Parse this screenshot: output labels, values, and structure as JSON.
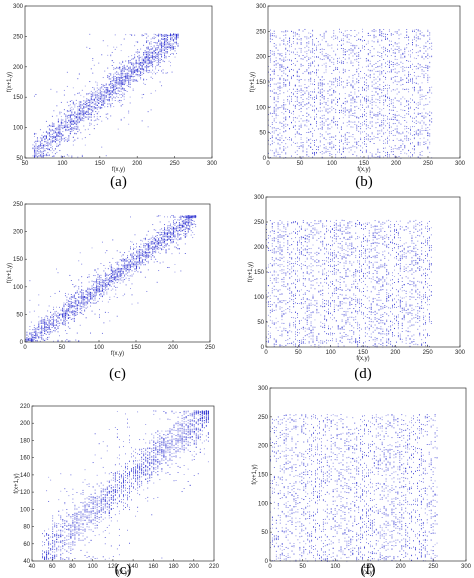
{
  "chart_data": [
    {
      "type": "scatter",
      "panel_label": "(a)",
      "xlabel": "f(x,y)",
      "ylabel": "f(x+1,y)",
      "xlim": [
        50,
        300
      ],
      "ylim": [
        50,
        300
      ],
      "xticks": [
        "50",
        "100",
        "150",
        "200",
        "250",
        "300"
      ],
      "yticks": [
        "50",
        "100",
        "150",
        "200",
        "250",
        "300"
      ],
      "pattern": "correlated",
      "data_range": [
        60,
        255
      ],
      "spread": 30,
      "points_color": "#2b2fd0",
      "grid": false,
      "legend": "none"
    },
    {
      "type": "scatter",
      "panel_label": "(b)",
      "xlabel": "f(x,y)",
      "ylabel": "f(x+1,y)",
      "xlim": [
        0,
        300
      ],
      "ylim": [
        0,
        300
      ],
      "xticks": [
        "0",
        "50",
        "100",
        "150",
        "200",
        "250",
        "300"
      ],
      "yticks": [
        "0",
        "50",
        "100",
        "150",
        "200",
        "250",
        "300"
      ],
      "pattern": "uniform",
      "data_range": [
        0,
        255
      ],
      "points_color": "#2b2fd0",
      "grid": false,
      "legend": "none"
    },
    {
      "type": "scatter",
      "panel_label": "(c)",
      "xlabel": "f(x,y)",
      "ylabel": "f(x+1,y)",
      "xlim": [
        0,
        250
      ],
      "ylim": [
        0,
        250
      ],
      "xticks": [
        "0",
        "50",
        "100",
        "150",
        "200",
        "250"
      ],
      "yticks": [
        "0",
        "50",
        "100",
        "150",
        "200",
        "250"
      ],
      "pattern": "correlated",
      "data_range": [
        0,
        230
      ],
      "spread": 25,
      "points_color": "#2b2fd0",
      "grid": false,
      "legend": "none"
    },
    {
      "type": "scatter",
      "panel_label": "(d)",
      "xlabel": "f(x,y)",
      "ylabel": "f(x+1,y)",
      "xlim": [
        0,
        300
      ],
      "ylim": [
        0,
        300
      ],
      "xticks": [
        "0",
        "50",
        "100",
        "150",
        "200",
        "250",
        "300"
      ],
      "yticks": [
        "0",
        "50",
        "100",
        "150",
        "200",
        "250",
        "300"
      ],
      "pattern": "uniform",
      "data_range": [
        0,
        255
      ],
      "points_color": "#2b2fd0",
      "grid": false,
      "legend": "none"
    },
    {
      "type": "scatter",
      "panel_label": "(c)",
      "xlabel": "f(x,y)",
      "ylabel": "f(x+1,y)",
      "xlim": [
        40,
        220
      ],
      "ylim": [
        40,
        220
      ],
      "xticks": [
        "40",
        "60",
        "80",
        "100",
        "120",
        "140",
        "160",
        "180",
        "200",
        "220"
      ],
      "yticks": [
        "40",
        "60",
        "80",
        "100",
        "120",
        "140",
        "160",
        "180",
        "200",
        "220"
      ],
      "pattern": "correlated",
      "data_range": [
        50,
        215
      ],
      "spread": 28,
      "points_color": "#2b2fd0",
      "grid": false,
      "legend": "none"
    },
    {
      "type": "scatter",
      "panel_label": "(f)",
      "xlabel": "f(x,y)",
      "ylabel": "f(x+1,y)",
      "xlim": [
        0,
        300
      ],
      "ylim": [
        0,
        300
      ],
      "xticks": [
        "0",
        "50",
        "100",
        "150",
        "200",
        "250",
        "300"
      ],
      "yticks": [
        "0",
        "50",
        "100",
        "150",
        "200",
        "250",
        "300"
      ],
      "pattern": "uniform",
      "data_range": [
        0,
        255
      ],
      "points_color": "#2b2fd0",
      "grid": false,
      "legend": "none"
    }
  ]
}
